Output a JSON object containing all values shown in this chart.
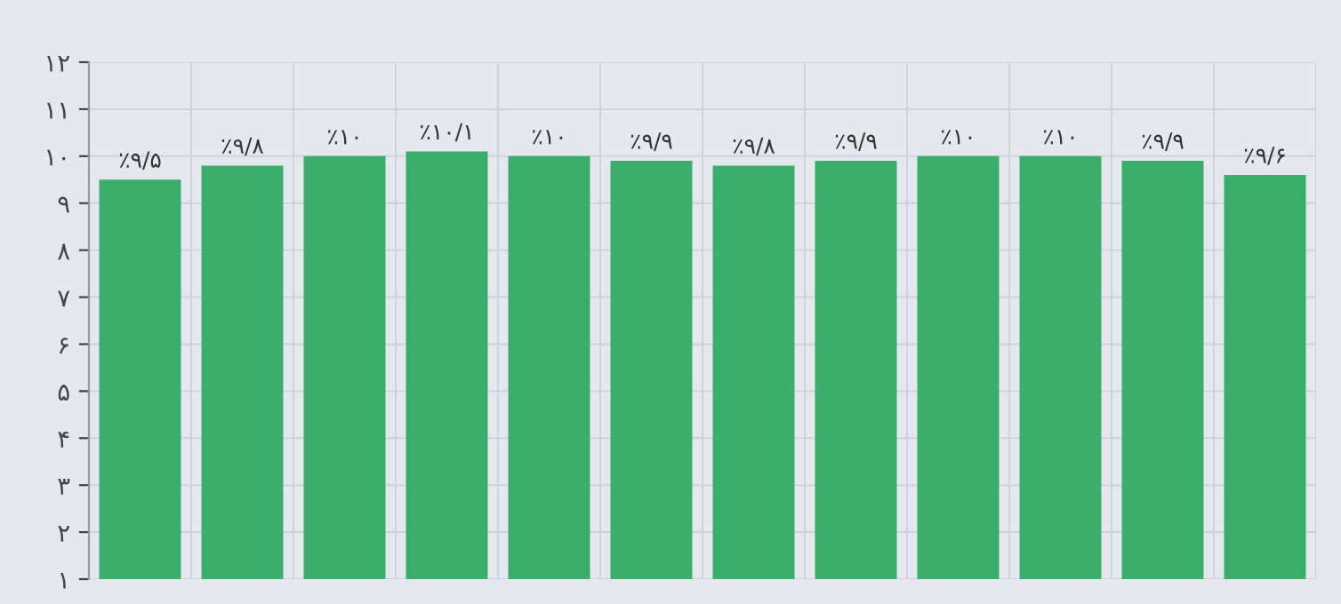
{
  "chart_data": {
    "type": "bar",
    "categories": [
      null,
      null,
      null,
      null,
      null,
      null,
      null,
      null,
      null,
      null,
      null,
      null
    ],
    "series": [
      {
        "color": "#3aae6a",
        "values": [
          9.5,
          9.8,
          10,
          10.1,
          10,
          9.9,
          9.8,
          9.9,
          10,
          10,
          9.9,
          9.6
        ],
        "value_labels": [
          "٪۹/۵",
          "٪۹/۸",
          "٪۱۰",
          "٪۱۰/۱",
          "٪۱۰",
          "٪۹/۹",
          "٪۹/۸",
          "٪۹/۹",
          "٪۱۰",
          "٪۱۰",
          "٪۹/۹",
          "٪۹/۶"
        ]
      }
    ],
    "ylim": [
      1,
      12
    ],
    "yticks": [
      {
        "value": 1,
        "label": "۱"
      },
      {
        "value": 2,
        "label": "۲"
      },
      {
        "value": 3,
        "label": "۳"
      },
      {
        "value": 4,
        "label": "۴"
      },
      {
        "value": 5,
        "label": "۵"
      },
      {
        "value": 6,
        "label": "۶"
      },
      {
        "value": 7,
        "label": "۷"
      },
      {
        "value": 8,
        "label": "۸"
      },
      {
        "value": 9,
        "label": "۹"
      },
      {
        "value": 10,
        "label": "۱۰"
      },
      {
        "value": 11,
        "label": "۱۱"
      },
      {
        "value": 12,
        "label": "۱۲"
      }
    ],
    "grid": true
  }
}
